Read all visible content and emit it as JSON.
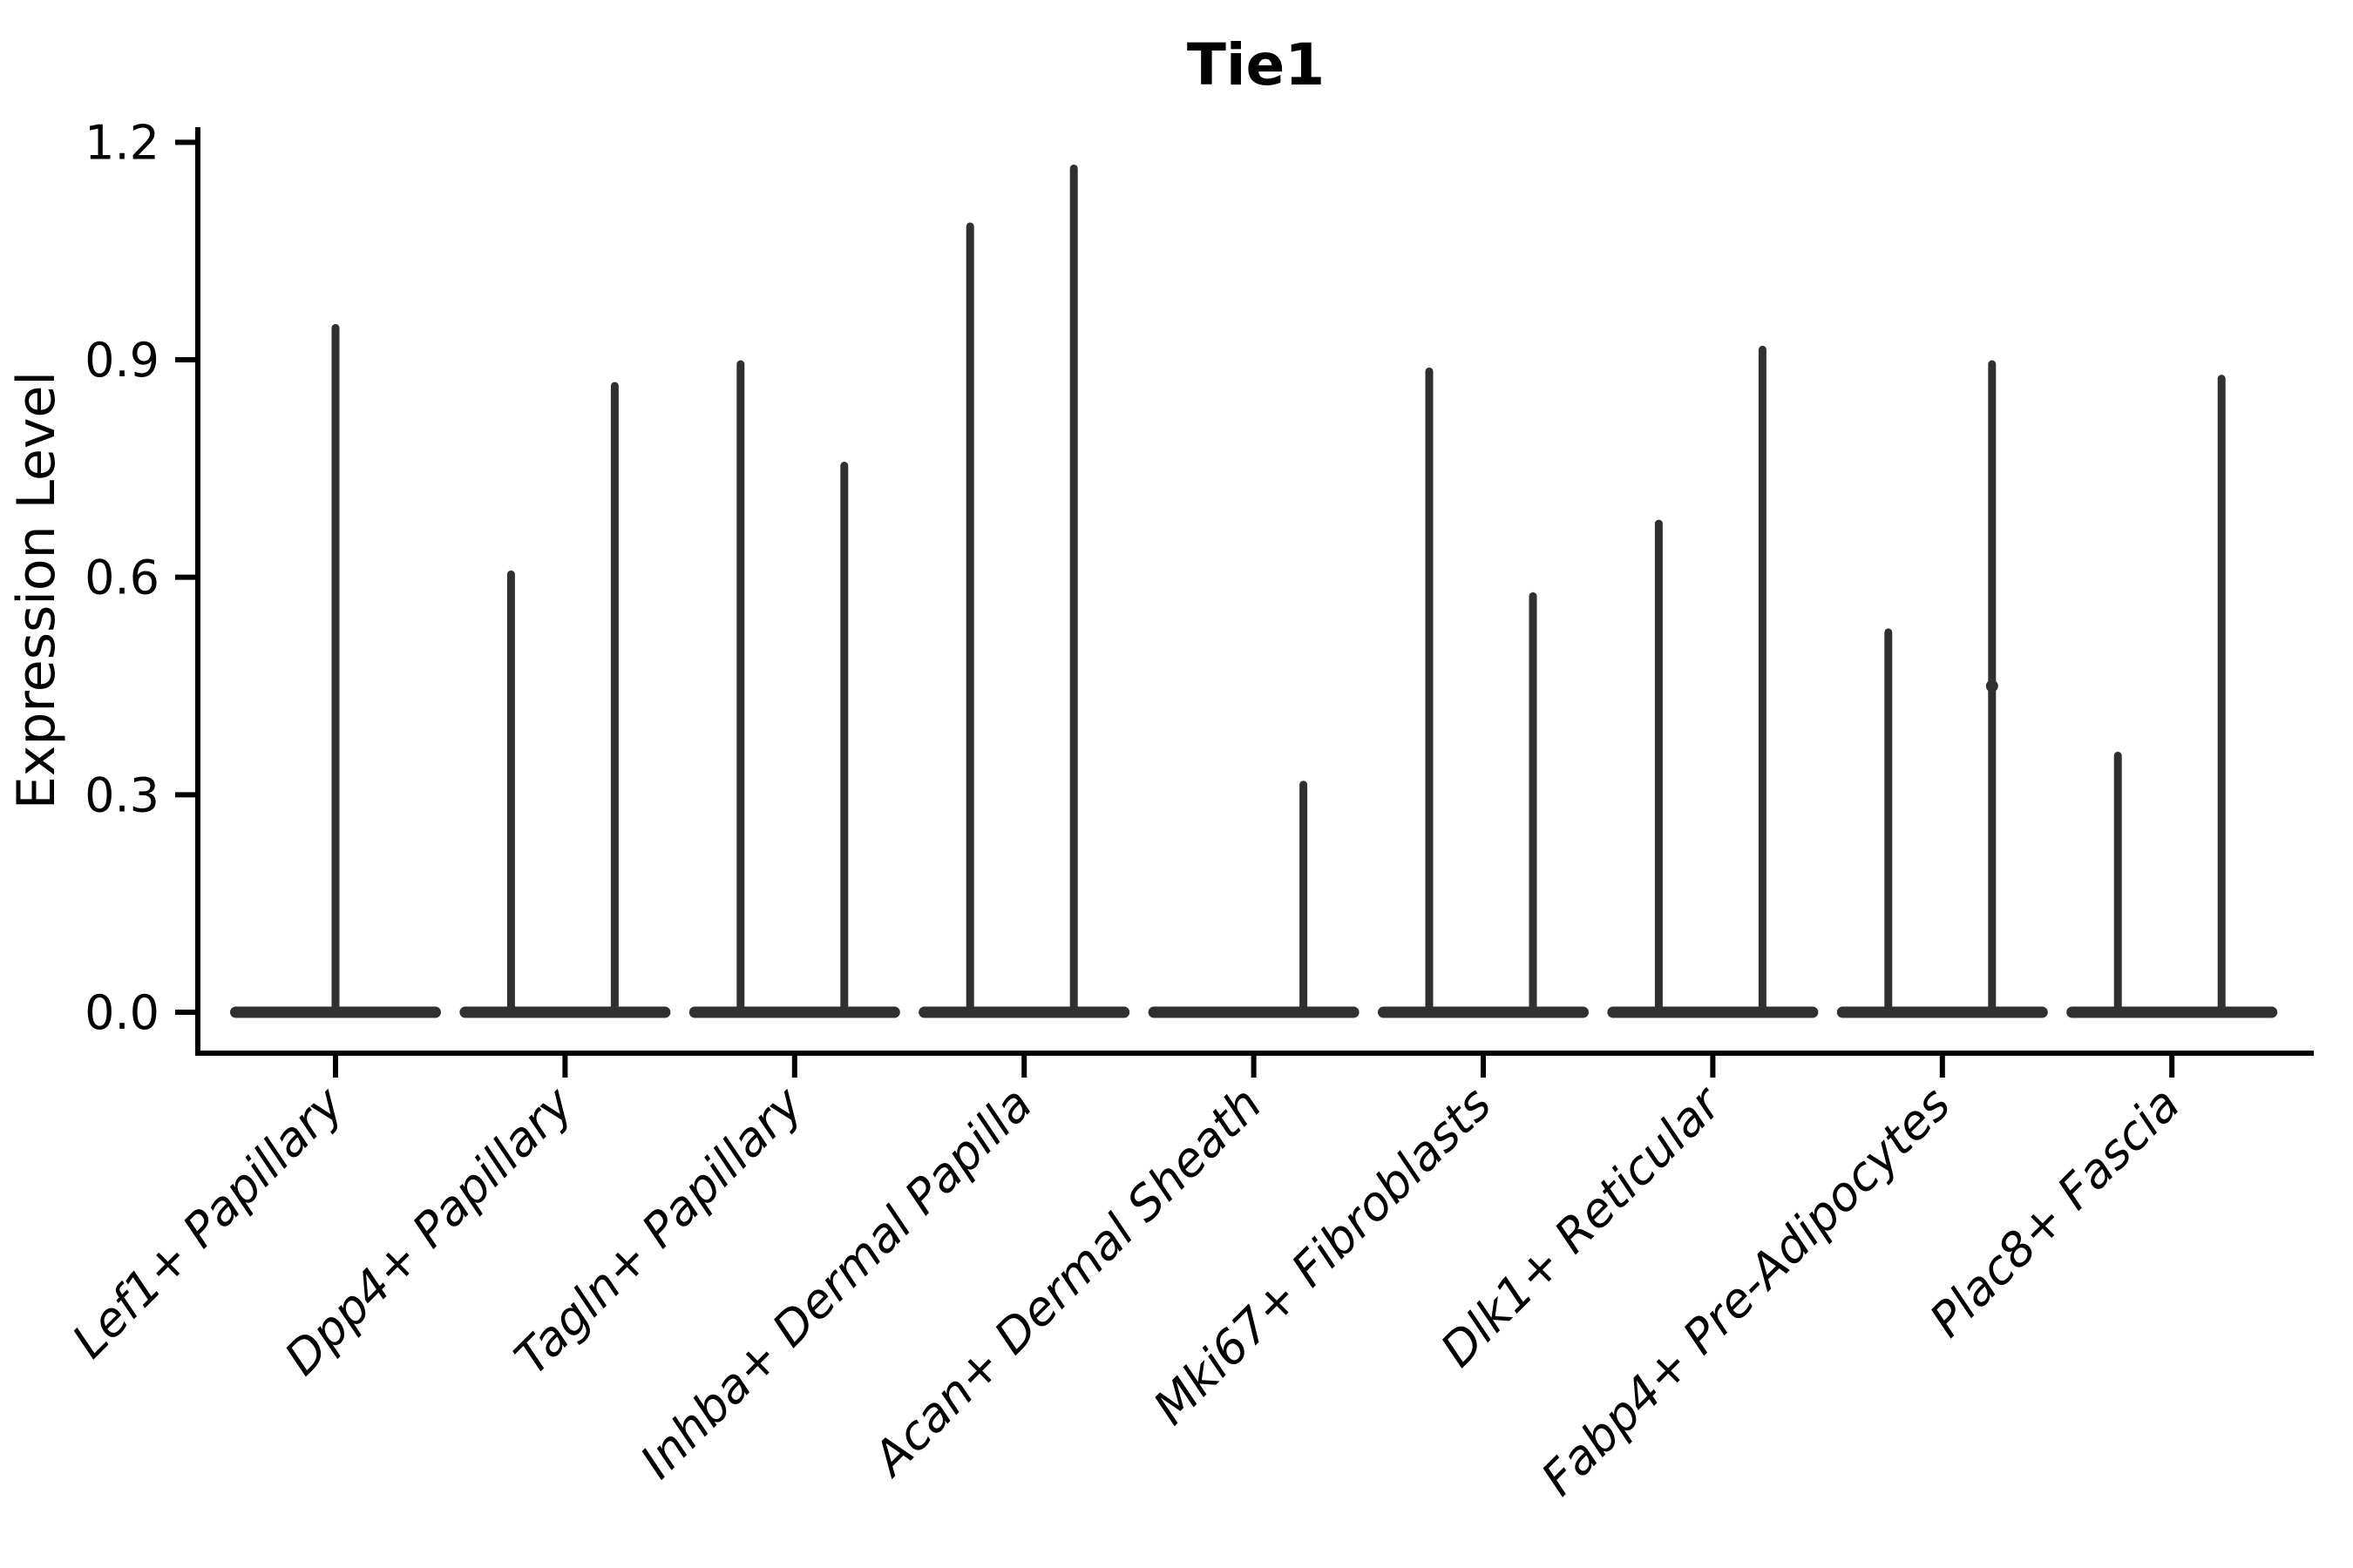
{
  "chart_data": {
    "type": "violin",
    "title": "Tie1",
    "ylabel": "Expression Level",
    "xlabel": "",
    "ytick_labels": [
      "0.0",
      "0.3",
      "0.6",
      "0.9",
      "1.2"
    ],
    "ytick_values": [
      0.0,
      0.3,
      0.6,
      0.9,
      1.2
    ],
    "ylim": [
      -0.06,
      1.22
    ],
    "grid": false,
    "legend": "none",
    "style_note": "Seurat-style stacked violin plot; each violin collapses to a flat bar at 0 with thin spikes up to the max expression",
    "categories": [
      "Lef1+ Papillary",
      "Dpp4+ Papillary",
      "Tagln+ Papillary",
      "Inhba+ Dermal Papilla",
      "Acan+ Dermal Sheath",
      "Mki67+ Fibroblasts",
      "Dlk1+ Reticular",
      "Fabp4+ Pre-Adipocytes",
      "Plac8+ Fascia"
    ],
    "baseline_value": 0.0,
    "violins": [
      {
        "label": "Lef1+ Papillary",
        "spikes": [
          {
            "pos": "center",
            "max": 0.95
          }
        ]
      },
      {
        "label": "Dpp4+ Papillary",
        "spikes": [
          {
            "pos": "left",
            "max": 0.61
          },
          {
            "pos": "right",
            "max": 0.87
          }
        ]
      },
      {
        "label": "Tagln+ Papillary",
        "spikes": [
          {
            "pos": "left",
            "max": 0.9
          },
          {
            "pos": "right",
            "max": 0.76
          }
        ]
      },
      {
        "label": "Inhba+ Dermal Papilla",
        "spikes": [
          {
            "pos": "left",
            "max": 1.09
          },
          {
            "pos": "right",
            "max": 1.17
          }
        ]
      },
      {
        "label": "Acan+ Dermal Sheath",
        "spikes": [
          {
            "pos": "right",
            "max": 0.32
          }
        ]
      },
      {
        "label": "Mki67+ Fibroblasts",
        "spikes": [
          {
            "pos": "left",
            "max": 0.89
          },
          {
            "pos": "right",
            "max": 0.58
          }
        ]
      },
      {
        "label": "Dlk1+ Reticular",
        "spikes": [
          {
            "pos": "left",
            "max": 0.68
          },
          {
            "pos": "right",
            "max": 0.92
          }
        ]
      },
      {
        "label": "Fabp4+ Pre-Adipocytes",
        "spikes": [
          {
            "pos": "left",
            "max": 0.53
          },
          {
            "pos": "right",
            "max": 0.9
          }
        ],
        "bump": {
          "pos": "right",
          "value": 0.45
        }
      },
      {
        "label": "Plac8+ Fascia",
        "spikes": [
          {
            "pos": "left",
            "max": 0.36
          },
          {
            "pos": "right",
            "max": 0.88
          }
        ]
      }
    ],
    "colors": {
      "violin": "#303030",
      "axis": "#000000",
      "text": "#000000",
      "background": "#ffffff"
    }
  }
}
